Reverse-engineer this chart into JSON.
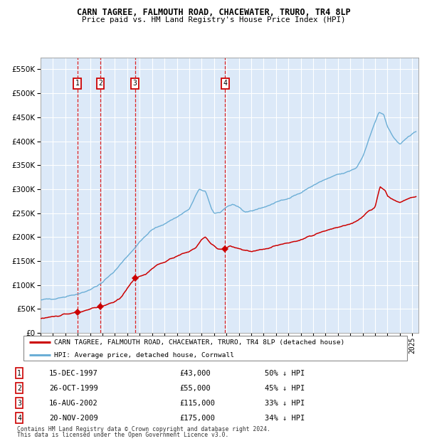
{
  "title": "CARN TAGREE, FALMOUTH ROAD, CHACEWATER, TRURO, TR4 8LP",
  "subtitle": "Price paid vs. HM Land Registry's House Price Index (HPI)",
  "ylim": [
    0,
    575000
  ],
  "xlim_start": 1995.0,
  "xlim_end": 2025.5,
  "yticks": [
    0,
    50000,
    100000,
    150000,
    200000,
    250000,
    300000,
    350000,
    400000,
    450000,
    500000,
    550000
  ],
  "ytick_labels": [
    "£0",
    "£50K",
    "£100K",
    "£150K",
    "£200K",
    "£250K",
    "£300K",
    "£350K",
    "£400K",
    "£450K",
    "£500K",
    "£550K"
  ],
  "xticks": [
    1995,
    1996,
    1997,
    1998,
    1999,
    2000,
    2001,
    2002,
    2003,
    2004,
    2005,
    2006,
    2007,
    2008,
    2009,
    2010,
    2011,
    2012,
    2013,
    2014,
    2015,
    2016,
    2017,
    2018,
    2019,
    2020,
    2021,
    2022,
    2023,
    2024,
    2025
  ],
  "plot_bg_color": "#dce9f8",
  "grid_color": "#ffffff",
  "hpi_line_color": "#6baed6",
  "sale_line_color": "#cc0000",
  "sale_marker_color": "#cc0000",
  "dashed_line_color": "#dd2222",
  "transactions": [
    {
      "num": 1,
      "date_str": "15-DEC-1997",
      "year": 1997.96,
      "price": 43000,
      "hpi_pct": "50% ↓ HPI"
    },
    {
      "num": 2,
      "date_str": "26-OCT-1999",
      "year": 1999.82,
      "price": 55000,
      "hpi_pct": "45% ↓ HPI"
    },
    {
      "num": 3,
      "date_str": "16-AUG-2002",
      "year": 2002.62,
      "price": 115000,
      "hpi_pct": "33% ↓ HPI"
    },
    {
      "num": 4,
      "date_str": "20-NOV-2009",
      "year": 2009.89,
      "price": 175000,
      "hpi_pct": "34% ↓ HPI"
    }
  ],
  "legend1_label": "CARN TAGREE, FALMOUTH ROAD, CHACEWATER, TRURO, TR4 8LP (detached house)",
  "legend2_label": "HPI: Average price, detached house, Cornwall",
  "footer1": "Contains HM Land Registry data © Crown copyright and database right 2024.",
  "footer2": "This data is licensed under the Open Government Licence v3.0."
}
